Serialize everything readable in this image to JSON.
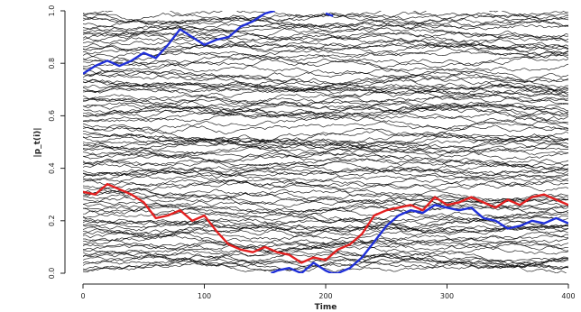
{
  "chart_data": {
    "type": "line",
    "title": "",
    "xlabel": "Time",
    "ylabel": "|p_t(i)|",
    "xlim": [
      0,
      400
    ],
    "ylim": [
      0.0,
      1.0
    ],
    "x_ticks": [
      0,
      100,
      200,
      300,
      400
    ],
    "y_ticks": [
      0.0,
      0.2,
      0.4,
      0.6,
      0.8,
      1.0
    ],
    "x_tick_labels": [
      "0",
      "100",
      "200",
      "300",
      "400"
    ],
    "y_tick_labels": [
      "0.0",
      "0.2",
      "0.4",
      "0.6",
      "0.8",
      "1.0"
    ],
    "grid": false,
    "background_paths": {
      "count": 110,
      "color": "#000000",
      "description_visible": "dense black random-walk paths filling the panel"
    },
    "series": [
      {
        "color": "#1f2fd8",
        "x": [
          0,
          10,
          20,
          30,
          40,
          50,
          60,
          70,
          80,
          90,
          100,
          110,
          120,
          130,
          140,
          150,
          158
        ],
        "values": [
          0.76,
          0.79,
          0.81,
          0.79,
          0.81,
          0.84,
          0.82,
          0.87,
          0.93,
          0.9,
          0.87,
          0.89,
          0.9,
          0.94,
          0.96,
          0.99,
          1.0
        ]
      },
      {
        "color": "#1f2fd8",
        "x": [
          200,
          206
        ],
        "values": [
          0.99,
          0.98
        ]
      },
      {
        "color": "#1f2fd8",
        "x": [
          155,
          160,
          170,
          180,
          190,
          200,
          205,
          210,
          220,
          230,
          240,
          250,
          260,
          270,
          280,
          290,
          300,
          310,
          320,
          330,
          340,
          350,
          360,
          370,
          380,
          390,
          400
        ],
        "values": [
          0.0,
          0.01,
          0.02,
          0.0,
          0.04,
          0.01,
          0.0,
          0.0,
          0.02,
          0.06,
          0.12,
          0.18,
          0.22,
          0.24,
          0.23,
          0.26,
          0.25,
          0.24,
          0.25,
          0.21,
          0.2,
          0.17,
          0.18,
          0.2,
          0.19,
          0.21,
          0.19
        ]
      },
      {
        "color": "#e32020",
        "x": [
          0,
          10,
          20,
          30,
          40,
          50,
          60,
          70,
          80,
          90,
          100,
          110,
          120,
          130,
          140,
          150,
          160,
          170,
          180,
          190,
          200,
          210,
          220,
          230,
          240,
          250,
          260,
          270,
          280,
          290,
          300,
          310,
          320,
          330,
          340,
          350,
          360,
          370,
          380,
          390,
          400
        ],
        "values": [
          0.31,
          0.3,
          0.34,
          0.32,
          0.3,
          0.27,
          0.21,
          0.22,
          0.24,
          0.2,
          0.22,
          0.16,
          0.11,
          0.09,
          0.08,
          0.1,
          0.08,
          0.07,
          0.04,
          0.06,
          0.05,
          0.09,
          0.11,
          0.15,
          0.22,
          0.24,
          0.25,
          0.26,
          0.24,
          0.29,
          0.26,
          0.27,
          0.29,
          0.27,
          0.25,
          0.28,
          0.26,
          0.29,
          0.3,
          0.28,
          0.26
        ]
      }
    ]
  }
}
